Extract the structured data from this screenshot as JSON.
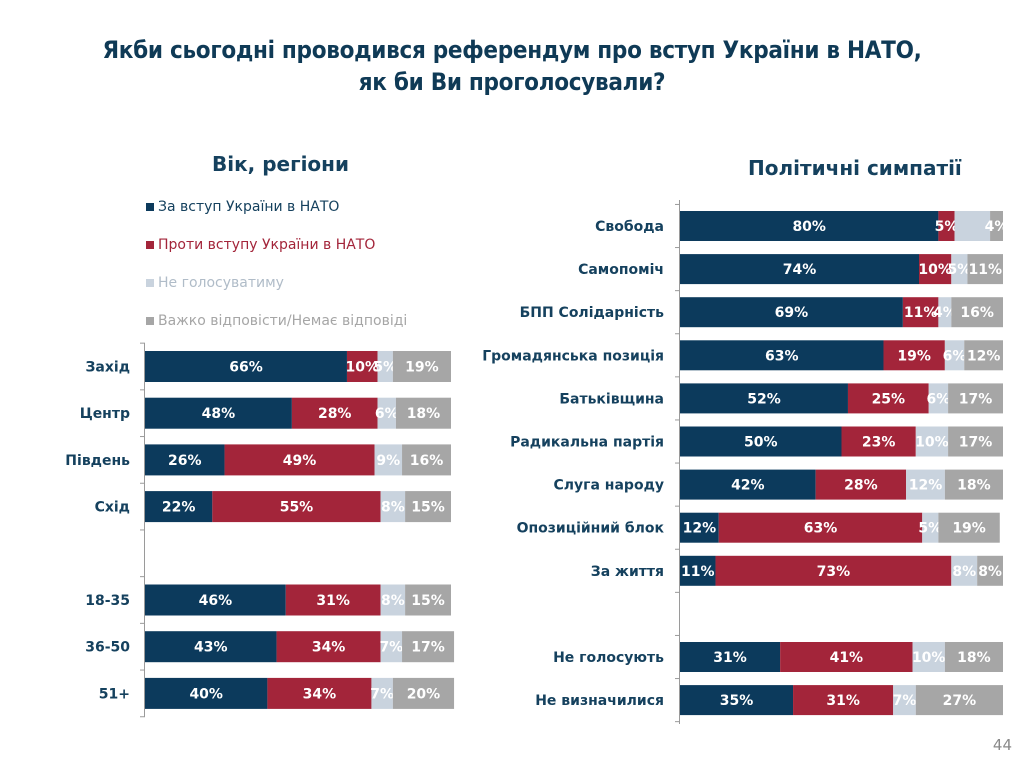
{
  "title_line1": "Якби сьогодні проводився референдум про вступ України в НАТО,",
  "title_line2": "як би Ви проголосували?",
  "page_number": "44",
  "colors": {
    "for": "#0c3a5c",
    "against": "#a3253a",
    "wont_vote": "#c9d3de",
    "hard_to_say": "#a6a6a6",
    "title": "#0f3a56"
  },
  "legend": [
    {
      "key": "for",
      "label": "За вступ України в НАТО",
      "text_color": "#15415e"
    },
    {
      "key": "against",
      "label": "Проти вступу України в НАТО",
      "text_color": "#a3253a"
    },
    {
      "key": "wont_vote",
      "label": "Не голосуватиму",
      "text_color": "#b0bcc8"
    },
    {
      "key": "hard_to_say",
      "label": "Важко відповісти/Немає відповіді",
      "text_color": "#a6a6a6"
    }
  ],
  "chart_data": [
    {
      "type": "bar",
      "orientation": "horizontal",
      "stacked": true,
      "title": "Вік, регіони",
      "series_names": [
        "За вступ України в НАТО",
        "Проти вступу України в НАТО",
        "Не голосуватиму",
        "Важко відповісти/Немає відповіді"
      ],
      "value_unit": "%",
      "xlim": [
        0,
        100
      ],
      "legend_placement": "top-left",
      "groups": [
        {
          "rows": [
            {
              "category": "Захід",
              "values": [
                66,
                10,
                5,
                19
              ]
            },
            {
              "category": "Центр",
              "values": [
                48,
                28,
                6,
                18
              ]
            },
            {
              "category": "Південь",
              "values": [
                26,
                49,
                9,
                16
              ]
            },
            {
              "category": "Схід",
              "values": [
                22,
                55,
                8,
                15
              ]
            }
          ]
        },
        {
          "rows": [
            {
              "category": "18-35",
              "values": [
                46,
                31,
                8,
                15
              ]
            },
            {
              "category": "36-50",
              "values": [
                43,
                34,
                7,
                17
              ]
            },
            {
              "category": "51+",
              "values": [
                40,
                34,
                7,
                20
              ]
            }
          ]
        }
      ]
    },
    {
      "type": "bar",
      "orientation": "horizontal",
      "stacked": true,
      "title": "Політичні симпатії",
      "series_names": [
        "За вступ України в НАТО",
        "Проти вступу України в НАТО",
        "Не голосуватиму",
        "Важко відповісти/Немає відповіді"
      ],
      "value_unit": "%",
      "xlim": [
        0,
        100
      ],
      "groups": [
        {
          "rows": [
            {
              "category": "Свобода",
              "values": [
                80,
                5,
                11,
                4
              ],
              "labels": [
                "80%",
                "5%",
                "",
                "4%"
              ]
            },
            {
              "category": "Самопоміч",
              "values": [
                74,
                10,
                5,
                11
              ],
              "labels": [
                "74%",
                "10%",
                "5%",
                "11%"
              ]
            },
            {
              "category": "БПП Солідарність",
              "values": [
                69,
                11,
                4,
                16
              ]
            },
            {
              "category": "Громадянська позиція",
              "values": [
                63,
                19,
                6,
                12
              ]
            },
            {
              "category": "Батьківщина",
              "values": [
                52,
                25,
                6,
                17
              ]
            },
            {
              "category": "Радикальна партія",
              "values": [
                50,
                23,
                10,
                17
              ]
            },
            {
              "category": "Слуга народу",
              "values": [
                42,
                28,
                12,
                18
              ]
            },
            {
              "category": "Опозиційний блок",
              "values": [
                12,
                63,
                5,
                19
              ]
            },
            {
              "category": "За життя",
              "values": [
                11,
                73,
                8,
                8
              ]
            }
          ]
        },
        {
          "rows": [
            {
              "category": "Не голосують",
              "values": [
                31,
                41,
                10,
                18
              ]
            },
            {
              "category": "Не визначилися",
              "values": [
                35,
                31,
                7,
                27
              ]
            }
          ]
        }
      ]
    }
  ]
}
